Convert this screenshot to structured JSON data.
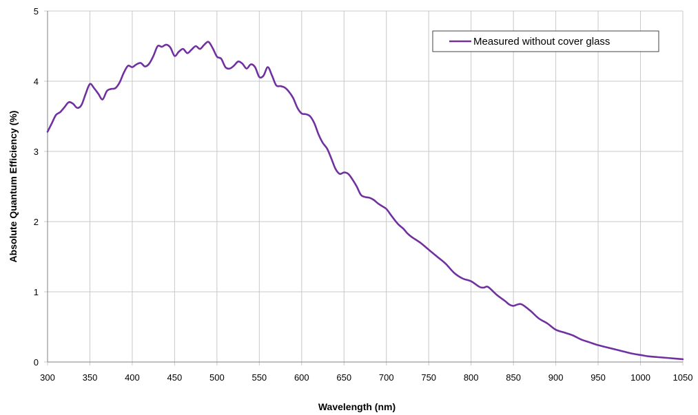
{
  "chart_data": {
    "type": "line",
    "xlabel": "Wavelength (nm)",
    "ylabel": "Absolute Quantum Efficiency (%)",
    "xlim": [
      300,
      1050
    ],
    "ylim": [
      0,
      5
    ],
    "xticks": [
      "300",
      "350",
      "400",
      "450",
      "500",
      "550",
      "600",
      "650",
      "700",
      "750",
      "800",
      "850",
      "900",
      "950",
      "1000",
      "1050"
    ],
    "yticks": [
      "0",
      "1",
      "2",
      "3",
      "4",
      "5"
    ],
    "grid": true,
    "legend_position": "top-right",
    "series": [
      {
        "name": "Measured without cover glass",
        "color": "#7030A0",
        "x": [
          300,
          305,
          310,
          315,
          320,
          325,
          330,
          335,
          340,
          345,
          350,
          355,
          360,
          365,
          370,
          375,
          380,
          385,
          390,
          395,
          400,
          405,
          410,
          415,
          420,
          425,
          430,
          435,
          440,
          445,
          450,
          455,
          460,
          465,
          470,
          475,
          480,
          485,
          490,
          495,
          500,
          505,
          510,
          515,
          520,
          525,
          530,
          535,
          540,
          545,
          550,
          555,
          560,
          565,
          570,
          575,
          580,
          585,
          590,
          595,
          600,
          605,
          610,
          615,
          620,
          625,
          630,
          635,
          640,
          645,
          650,
          655,
          660,
          665,
          670,
          675,
          680,
          685,
          690,
          695,
          700,
          705,
          710,
          715,
          720,
          725,
          730,
          740,
          750,
          760,
          770,
          780,
          790,
          800,
          810,
          815,
          820,
          830,
          840,
          845,
          850,
          855,
          860,
          870,
          880,
          890,
          900,
          910,
          920,
          930,
          940,
          950,
          960,
          970,
          980,
          990,
          1000,
          1010,
          1020,
          1030,
          1040,
          1050
        ],
        "values": [
          3.28,
          3.4,
          3.52,
          3.56,
          3.63,
          3.7,
          3.68,
          3.62,
          3.66,
          3.82,
          3.96,
          3.9,
          3.82,
          3.74,
          3.86,
          3.89,
          3.9,
          3.98,
          4.12,
          4.22,
          4.2,
          4.24,
          4.26,
          4.21,
          4.25,
          4.36,
          4.5,
          4.49,
          4.52,
          4.48,
          4.36,
          4.42,
          4.46,
          4.4,
          4.45,
          4.5,
          4.46,
          4.52,
          4.56,
          4.47,
          4.35,
          4.32,
          4.2,
          4.18,
          4.22,
          4.28,
          4.25,
          4.18,
          4.24,
          4.2,
          4.06,
          4.08,
          4.2,
          4.08,
          3.94,
          3.93,
          3.91,
          3.85,
          3.76,
          3.62,
          3.54,
          3.53,
          3.5,
          3.4,
          3.24,
          3.12,
          3.04,
          2.9,
          2.75,
          2.68,
          2.7,
          2.68,
          2.6,
          2.5,
          2.38,
          2.35,
          2.34,
          2.31,
          2.26,
          2.22,
          2.18,
          2.1,
          2.02,
          1.95,
          1.9,
          1.83,
          1.78,
          1.7,
          1.6,
          1.5,
          1.4,
          1.27,
          1.19,
          1.15,
          1.07,
          1.06,
          1.07,
          0.96,
          0.87,
          0.82,
          0.8,
          0.82,
          0.82,
          0.73,
          0.62,
          0.55,
          0.46,
          0.42,
          0.38,
          0.32,
          0.28,
          0.24,
          0.21,
          0.18,
          0.15,
          0.12,
          0.1,
          0.08,
          0.07,
          0.06,
          0.05,
          0.04
        ]
      }
    ]
  }
}
